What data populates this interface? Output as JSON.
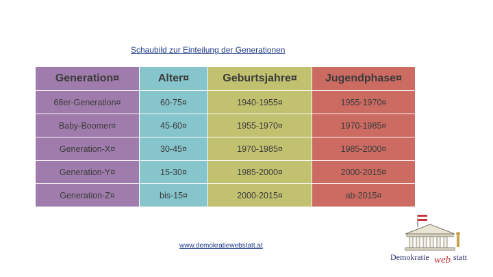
{
  "slide": {
    "title": "Schaubild zur Einteilung der Generationen",
    "footer_url": "www.demokratiewebstatt.at"
  },
  "table": {
    "headers": [
      "Generation¤",
      "Alter¤",
      "Geburtsjahre¤",
      "Jugendphase¤"
    ],
    "rows": [
      [
        "68er-Generation¤",
        "60-75¤",
        "1940-1955¤",
        "1955-1970¤"
      ],
      [
        "Baby-Boomer¤",
        "45-60¤",
        "1955-1970¤",
        "1970-1985¤"
      ],
      [
        "Generation-X¤",
        "30-45¤",
        "1970-1985¤",
        "1985-2000¤"
      ],
      [
        "Generation-Y¤",
        "15-30¤",
        "1985-2000¤",
        "2000-2015¤"
      ],
      [
        "Generation-Z¤",
        "bis-15¤",
        "2000-2015¤",
        "ab-2015¤"
      ]
    ]
  },
  "logo": {
    "text_part1": "Demokratie",
    "text_part2": "web",
    "text_part3": "statt",
    "icon": "parliament-building-icon"
  },
  "colors": {
    "generation_column": "#a07cac",
    "age_column": "#86c5cc",
    "birth_years_column": "#c2c170",
    "youth_phase_column": "#cc6b62",
    "title_text": "#1f3a8a"
  }
}
